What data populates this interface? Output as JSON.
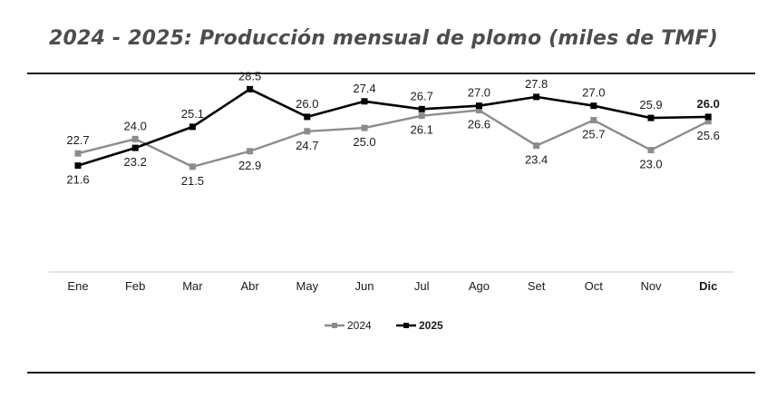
{
  "title": "2024 - 2025: Producción mensual de plomo (miles de TMF)",
  "chart_data": {
    "type": "line",
    "title": "2024 - 2025: Producción mensual de plomo (miles de TMF)",
    "categories": [
      "Ene",
      "Feb",
      "Mar",
      "Abr",
      "May",
      "Jun",
      "Jul",
      "Ago",
      "Set",
      "Oct",
      "Nov",
      "Dic"
    ],
    "highlight_category": "Dic",
    "series": [
      {
        "name": "2024",
        "color": "#8c8c8c",
        "values": [
          22.7,
          24.0,
          21.5,
          22.9,
          24.7,
          25.0,
          26.1,
          26.6,
          23.4,
          25.7,
          23.0,
          25.6
        ],
        "label_position": [
          "above",
          "above",
          "below",
          "below",
          "below",
          "below",
          "below",
          "below",
          "below",
          "below",
          "below",
          "below"
        ]
      },
      {
        "name": "2025",
        "color": "#000000",
        "values": [
          21.6,
          23.2,
          25.1,
          28.5,
          26.0,
          27.4,
          26.7,
          27.0,
          27.8,
          27.0,
          25.9,
          26.0
        ],
        "label_position": [
          "below",
          "below",
          "above",
          "above",
          "above",
          "above",
          "above",
          "above",
          "above",
          "above",
          "above",
          "above"
        ],
        "bold_last_label": true
      }
    ],
    "ylim": [
      12,
      30
    ],
    "grid": false,
    "legend_position": "bottom-center",
    "xlabel": "",
    "ylabel": ""
  }
}
